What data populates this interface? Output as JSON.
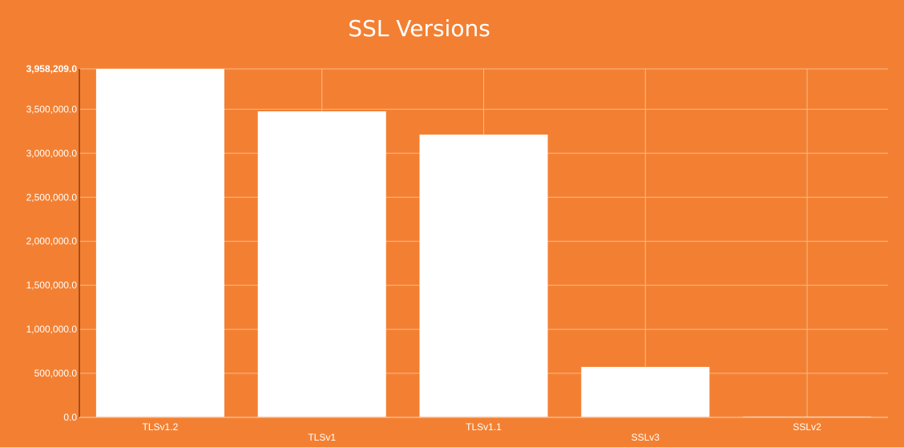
{
  "chart_data": {
    "type": "bar",
    "title": "SSL Versions",
    "categories": [
      "TLSv1.2",
      "TLSv1",
      "TLSv1.1",
      "SSLv3",
      "SSLv2"
    ],
    "values": [
      3958209,
      3476000,
      3212000,
      573000,
      10000
    ],
    "ylim": [
      0,
      3958209
    ],
    "yticks": [
      "0.0",
      "500,000.0",
      "1,000,000.0",
      "1,500,000.0",
      "2,000,000.0",
      "2,500,000.0",
      "3,000,000.0",
      "3,500,000.0",
      "3,958,209.0"
    ],
    "xlabel": "",
    "ylabel": "",
    "grid": true,
    "colors": {
      "background": "#f38032",
      "bar": "#ffffff",
      "grid": "#f7b98a",
      "axis": "#5a1a00"
    }
  }
}
